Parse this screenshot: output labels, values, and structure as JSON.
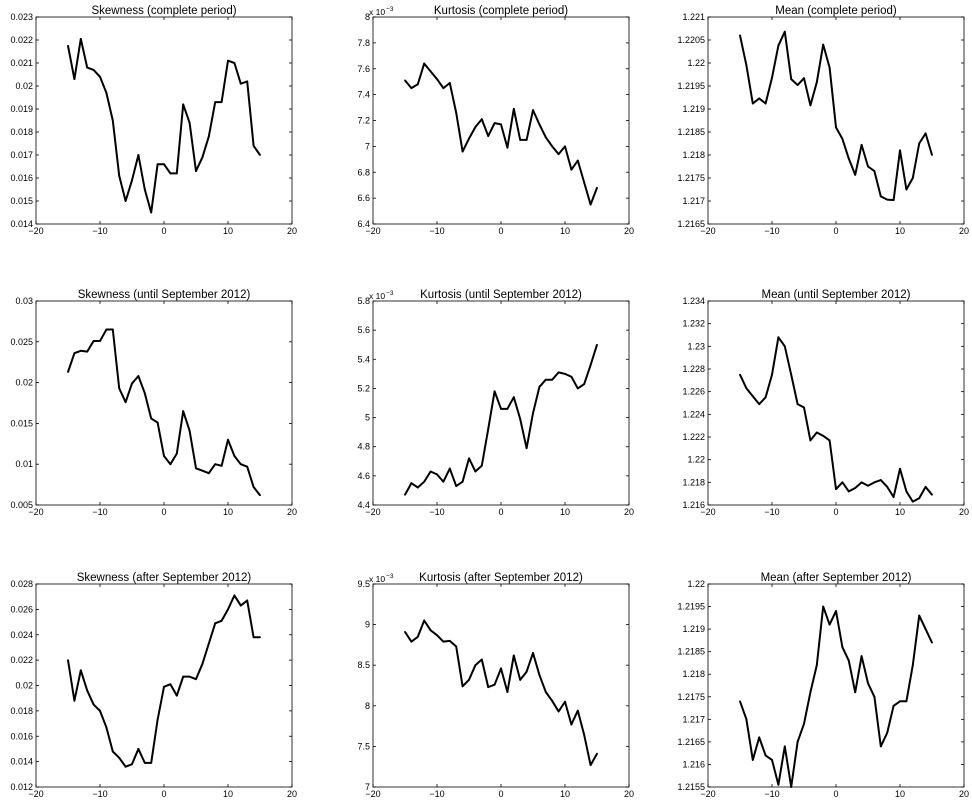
{
  "chart_data": [
    {
      "type": "line",
      "title": "Skewness (complete period)",
      "xlim": [
        -20,
        20
      ],
      "ylim": [
        0.014,
        0.023
      ],
      "xticks": [
        "-20",
        "-10",
        "0",
        "10",
        "20"
      ],
      "yticks": [
        "0.014",
        "0.015",
        "0.016",
        "0.017",
        "0.018",
        "0.019",
        "0.02",
        "0.021",
        "0.022",
        "0.023"
      ],
      "exponent_label": "",
      "x": [
        -15,
        -14,
        -13,
        -12,
        -11,
        -10,
        -9,
        -8,
        -7,
        -6,
        -5,
        -4,
        -3,
        -2,
        -1,
        0,
        1,
        2,
        3,
        4,
        5,
        6,
        7,
        8,
        9,
        10,
        11,
        12,
        13,
        14,
        15
      ],
      "y": [
        0.02175,
        0.0203,
        0.02205,
        0.0208,
        0.0207,
        0.0204,
        0.0197,
        0.0185,
        0.0161,
        0.015,
        0.0159,
        0.017,
        0.0155,
        0.0145,
        0.0166,
        0.0166,
        0.0162,
        0.0162,
        0.0192,
        0.0184,
        0.0163,
        0.0169,
        0.0178,
        0.0193,
        0.0193,
        0.0211,
        0.021,
        0.0201,
        0.0202,
        0.0174,
        0.017
      ]
    },
    {
      "type": "line",
      "title": "Kurtosis (complete period)",
      "xlim": [
        -20,
        20
      ],
      "ylim": [
        6.4,
        8.0
      ],
      "xticks": [
        "-20",
        "-10",
        "0",
        "10",
        "20"
      ],
      "yticks": [
        "6.4",
        "6.6",
        "6.8",
        "7",
        "7.2",
        "7.4",
        "7.6",
        "7.8",
        "8"
      ],
      "exponent_label": "x 10",
      "exponent_power": "-3",
      "x": [
        -15,
        -14,
        -13,
        -12,
        -11,
        -10,
        -9,
        -8,
        -7,
        -6,
        -5,
        -4,
        -3,
        -2,
        -1,
        0,
        1,
        2,
        3,
        4,
        5,
        6,
        7,
        8,
        9,
        10,
        11,
        12,
        13,
        14,
        15
      ],
      "y": [
        7.51,
        7.45,
        7.48,
        7.64,
        7.58,
        7.52,
        7.45,
        7.49,
        7.26,
        6.96,
        7.06,
        7.15,
        7.21,
        7.08,
        7.18,
        7.17,
        6.99,
        7.29,
        7.05,
        7.05,
        7.28,
        7.17,
        7.07,
        7.0,
        6.94,
        7.0,
        6.82,
        6.89,
        6.72,
        6.55,
        6.68
      ]
    },
    {
      "type": "line",
      "title": "Mean (complete period)",
      "xlim": [
        -20,
        20
      ],
      "ylim": [
        1.2165,
        1.221
      ],
      "xticks": [
        "-20",
        "-10",
        "0",
        "10",
        "20"
      ],
      "yticks": [
        "1.2165",
        "1.217",
        "1.2175",
        "1.218",
        "1.2185",
        "1.219",
        "1.2195",
        "1.22",
        "1.2205",
        "1.221"
      ],
      "exponent_label": "",
      "x": [
        -15,
        -14,
        -13,
        -12,
        -11,
        -10,
        -9,
        -8,
        -7,
        -6,
        -5,
        -4,
        -3,
        -2,
        -1,
        0,
        1,
        2,
        3,
        4,
        5,
        6,
        7,
        8,
        9,
        10,
        11,
        12,
        13,
        14,
        15
      ],
      "y": [
        1.2206,
        1.21995,
        1.21912,
        1.21923,
        1.21912,
        1.21968,
        1.22038,
        1.22068,
        1.21965,
        1.21952,
        1.21967,
        1.21908,
        1.21958,
        1.2204,
        1.2199,
        1.2186,
        1.21835,
        1.21792,
        1.21757,
        1.21822,
        1.21775,
        1.21765,
        1.2171,
        1.21703,
        1.21702,
        1.2181,
        1.21725,
        1.2175,
        1.21825,
        1.21847,
        1.218
      ]
    },
    {
      "type": "line",
      "title": "Skewness (until September 2012)",
      "xlim": [
        -20,
        20
      ],
      "ylim": [
        0.005,
        0.03
      ],
      "xticks": [
        "-20",
        "-10",
        "0",
        "10",
        "20"
      ],
      "yticks": [
        "0.005",
        "0.01",
        "0.015",
        "0.02",
        "0.025",
        "0.03"
      ],
      "exponent_label": "",
      "x": [
        -15,
        -14,
        -13,
        -12,
        -11,
        -10,
        -9,
        -8,
        -7,
        -6,
        -5,
        -4,
        -3,
        -2,
        -1,
        0,
        1,
        2,
        3,
        4,
        5,
        6,
        7,
        8,
        9,
        10,
        11,
        12,
        13,
        14,
        15
      ],
      "y": [
        0.0213,
        0.0236,
        0.0239,
        0.0238,
        0.0251,
        0.0251,
        0.0265,
        0.0265,
        0.0193,
        0.0176,
        0.0199,
        0.0208,
        0.0187,
        0.0156,
        0.0151,
        0.011,
        0.01,
        0.0113,
        0.0165,
        0.0141,
        0.0095,
        0.0092,
        0.0089,
        0.01,
        0.0098,
        0.013,
        0.011,
        0.01,
        0.0097,
        0.0072,
        0.0062
      ]
    },
    {
      "type": "line",
      "title": "Kurtosis (until September 2012)",
      "xlim": [
        -20,
        20
      ],
      "ylim": [
        4.4,
        5.8
      ],
      "xticks": [
        "-20",
        "-10",
        "0",
        "10",
        "20"
      ],
      "yticks": [
        "4.4",
        "4.6",
        "4.8",
        "5",
        "5.2",
        "5.4",
        "5.6",
        "5.8"
      ],
      "exponent_label": "x 10",
      "exponent_power": "-3",
      "x": [
        -15,
        -14,
        -13,
        -12,
        -11,
        -10,
        -9,
        -8,
        -7,
        -6,
        -5,
        -4,
        -3,
        -2,
        -1,
        0,
        1,
        2,
        3,
        4,
        5,
        6,
        7,
        8,
        9,
        10,
        11,
        12,
        13,
        14,
        15
      ],
      "y": [
        4.47,
        4.55,
        4.52,
        4.56,
        4.63,
        4.61,
        4.56,
        4.65,
        4.53,
        4.56,
        4.72,
        4.63,
        4.67,
        4.92,
        5.18,
        5.06,
        5.06,
        5.14,
        4.99,
        4.79,
        5.03,
        5.21,
        5.26,
        5.26,
        5.31,
        5.3,
        5.28,
        5.2,
        5.23,
        5.36,
        5.5
      ]
    },
    {
      "type": "line",
      "title": "Mean (until September 2012)",
      "xlim": [
        -20,
        20
      ],
      "ylim": [
        1.216,
        1.234
      ],
      "xticks": [
        "-20",
        "-10",
        "0",
        "10",
        "20"
      ],
      "yticks": [
        "1.216",
        "1.218",
        "1.22",
        "1.222",
        "1.224",
        "1.226",
        "1.228",
        "1.23",
        "1.232",
        "1.234"
      ],
      "exponent_label": "",
      "x": [
        -15,
        -14,
        -13,
        -12,
        -11,
        -10,
        -9,
        -8,
        -7,
        -6,
        -5,
        -4,
        -3,
        -2,
        -1,
        0,
        1,
        2,
        3,
        4,
        5,
        6,
        7,
        8,
        9,
        10,
        11,
        12,
        13,
        14,
        15
      ],
      "y": [
        1.2275,
        1.2263,
        1.2256,
        1.2249,
        1.2255,
        1.2275,
        1.2308,
        1.23,
        1.2275,
        1.2249,
        1.2246,
        1.2217,
        1.2224,
        1.2221,
        1.2217,
        1.2174,
        1.218,
        1.2172,
        1.2175,
        1.218,
        1.2177,
        1.218,
        1.2182,
        1.2176,
        1.2167,
        1.2192,
        1.2172,
        1.2163,
        1.2166,
        1.2176,
        1.2169
      ]
    },
    {
      "type": "line",
      "title": "Skewness (after September 2012)",
      "xlim": [
        -20,
        20
      ],
      "ylim": [
        0.012,
        0.028
      ],
      "xticks": [
        "-20",
        "-10",
        "0",
        "10",
        "20"
      ],
      "yticks": [
        "0.012",
        "0.014",
        "0.016",
        "0.018",
        "0.02",
        "0.022",
        "0.024",
        "0.026",
        "0.028"
      ],
      "exponent_label": "",
      "x": [
        -15,
        -14,
        -13,
        -12,
        -11,
        -10,
        -9,
        -8,
        -7,
        -6,
        -5,
        -4,
        -3,
        -2,
        -1,
        0,
        1,
        2,
        3,
        4,
        5,
        6,
        7,
        8,
        9,
        10,
        11,
        12,
        13,
        14,
        15
      ],
      "y": [
        0.022,
        0.0188,
        0.0212,
        0.0196,
        0.0185,
        0.018,
        0.0167,
        0.0148,
        0.0143,
        0.0136,
        0.0138,
        0.015,
        0.0139,
        0.0139,
        0.0173,
        0.0199,
        0.0201,
        0.0192,
        0.0207,
        0.0207,
        0.0205,
        0.0217,
        0.0233,
        0.0249,
        0.0251,
        0.026,
        0.0271,
        0.0263,
        0.0267,
        0.0238,
        0.0238
      ]
    },
    {
      "type": "line",
      "title": "Kurtosis (after September 2012)",
      "xlim": [
        -20,
        20
      ],
      "ylim": [
        7.0,
        9.5
      ],
      "xticks": [
        "-20",
        "-10",
        "0",
        "10",
        "20"
      ],
      "yticks": [
        "7",
        "7.5",
        "8",
        "8.5",
        "9",
        "9.5"
      ],
      "exponent_label": "x 10",
      "exponent_power": "-3",
      "x": [
        -15,
        -14,
        -13,
        -12,
        -11,
        -10,
        -9,
        -8,
        -7,
        -6,
        -5,
        -4,
        -3,
        -2,
        -1,
        0,
        1,
        2,
        3,
        4,
        5,
        6,
        7,
        8,
        9,
        10,
        11,
        12,
        13,
        14,
        15
      ],
      "y": [
        8.91,
        8.79,
        8.85,
        9.05,
        8.93,
        8.87,
        8.79,
        8.8,
        8.73,
        8.24,
        8.32,
        8.5,
        8.57,
        8.23,
        8.26,
        8.46,
        8.17,
        8.62,
        8.32,
        8.42,
        8.65,
        8.38,
        8.17,
        8.06,
        7.93,
        8.05,
        7.77,
        7.94,
        7.64,
        7.27,
        7.41
      ]
    },
    {
      "type": "line",
      "title": "Mean (after September 2012)",
      "xlim": [
        -20,
        20
      ],
      "ylim": [
        1.2155,
        1.22
      ],
      "xticks": [
        "-20",
        "-10",
        "0",
        "10",
        "20"
      ],
      "yticks": [
        "1.2155",
        "1.216",
        "1.2165",
        "1.217",
        "1.2175",
        "1.218",
        "1.2185",
        "1.219",
        "1.2195",
        "1.22"
      ],
      "exponent_label": "",
      "x": [
        -15,
        -14,
        -13,
        -12,
        -11,
        -10,
        -9,
        -8,
        -7,
        -6,
        -5,
        -4,
        -3,
        -2,
        -1,
        0,
        1,
        2,
        3,
        4,
        5,
        6,
        7,
        8,
        9,
        10,
        11,
        12,
        13,
        14,
        15
      ],
      "y": [
        1.2174,
        1.217,
        1.2161,
        1.2166,
        1.2162,
        1.2161,
        1.21555,
        1.2164,
        1.2155,
        1.2165,
        1.2169,
        1.2176,
        1.2182,
        1.2195,
        1.2191,
        1.2194,
        1.2186,
        1.2183,
        1.2176,
        1.2184,
        1.2178,
        1.2175,
        1.2164,
        1.2167,
        1.2173,
        1.2174,
        1.2174,
        1.2182,
        1.2193,
        1.219,
        1.2187
      ]
    }
  ]
}
